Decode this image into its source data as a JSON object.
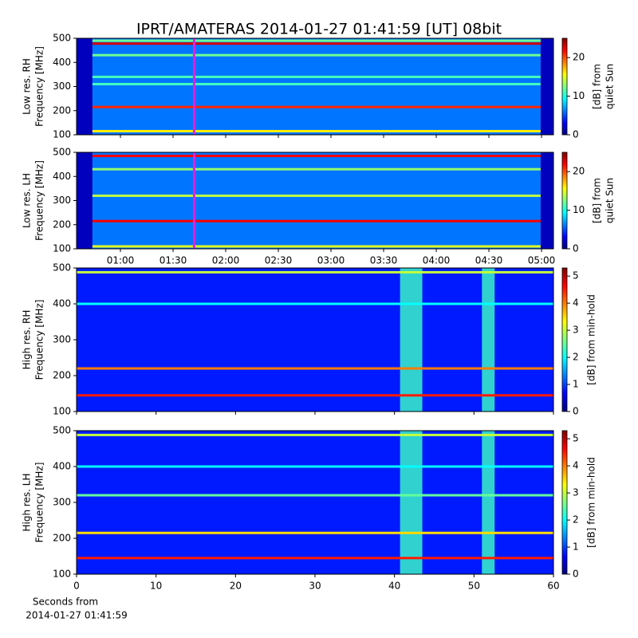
{
  "figure": {
    "title": "IPRT/AMATERAS 2014-01-27 01:41:59 [UT]   08bit",
    "xlabel": [
      "Seconds from",
      "2014-01-27 01:41:59"
    ]
  },
  "chart_data": [
    {
      "type": "heatmap",
      "ylabel": [
        "Low res. RH",
        "Frequency [MHz]"
      ],
      "ylim": [
        100,
        500
      ],
      "yticks": [
        100,
        200,
        300,
        400,
        500
      ],
      "xlim": [
        35,
        306.8
      ],
      "xticks": [
        {
          "value": 60,
          "label": "01:00"
        },
        {
          "value": 90,
          "label": "01:30"
        },
        {
          "value": 120,
          "label": "02:00"
        },
        {
          "value": 150,
          "label": "02:30"
        },
        {
          "value": 180,
          "label": "03:00"
        },
        {
          "value": 210,
          "label": "03:30"
        },
        {
          "value": 240,
          "label": "04:00"
        },
        {
          "value": 270,
          "label": "04:30"
        },
        {
          "value": 300,
          "label": "05:00"
        }
      ],
      "show_xticklabels": false,
      "background": 6,
      "cursor": 102,
      "cursor_color": "#e020e0",
      "masked": [
        {
          "x": [
            35,
            44
          ],
          "value": 1.5
        },
        {
          "x": [
            299.5,
            306.8
          ],
          "value": 1.5
        }
      ],
      "bands": [
        {
          "freq": 490,
          "value": 12
        },
        {
          "freq": 478,
          "value": 23
        },
        {
          "freq": 430,
          "value": 12
        },
        {
          "freq": 340,
          "value": 11
        },
        {
          "freq": 310,
          "value": 11
        },
        {
          "freq": 215,
          "value": 21
        },
        {
          "freq": 115,
          "value": 16
        }
      ],
      "bursts": [],
      "colorbar": {
        "label": [
          "[dB] from",
          "quiet Sun"
        ],
        "lim": [
          0,
          25
        ],
        "ticks": [
          0,
          10,
          20
        ]
      }
    },
    {
      "type": "heatmap",
      "ylabel": [
        "Low res. LH",
        "Frequency [MHz]"
      ],
      "ylim": [
        100,
        500
      ],
      "yticks": [
        100,
        200,
        300,
        400,
        500
      ],
      "xlim": [
        35,
        306.8
      ],
      "xticks": [
        {
          "value": 60,
          "label": "01:00"
        },
        {
          "value": 90,
          "label": "01:30"
        },
        {
          "value": 120,
          "label": "02:00"
        },
        {
          "value": 150,
          "label": "02:30"
        },
        {
          "value": 180,
          "label": "03:00"
        },
        {
          "value": 210,
          "label": "03:30"
        },
        {
          "value": 240,
          "label": "04:00"
        },
        {
          "value": 270,
          "label": "04:30"
        },
        {
          "value": 300,
          "label": "05:00"
        }
      ],
      "show_xticklabels": true,
      "background": 6,
      "cursor": 102,
      "cursor_color": "#e020e0",
      "masked": [
        {
          "x": [
            35,
            44
          ],
          "value": 1.5
        },
        {
          "x": [
            299.5,
            306.8
          ],
          "value": 1.5
        }
      ],
      "bands": [
        {
          "freq": 485,
          "value": 22
        },
        {
          "freq": 430,
          "value": 13
        },
        {
          "freq": 320,
          "value": 14
        },
        {
          "freq": 215,
          "value": 22
        },
        {
          "freq": 110,
          "value": 15
        }
      ],
      "bursts": [],
      "colorbar": {
        "label": [
          "[dB] from",
          "quiet Sun"
        ],
        "lim": [
          0,
          25
        ],
        "ticks": [
          0,
          10,
          20
        ]
      }
    },
    {
      "type": "heatmap",
      "ylabel": [
        "High res. RH",
        "Frequency [MHz]"
      ],
      "ylim": [
        100,
        500
      ],
      "yticks": [
        100,
        200,
        300,
        400,
        500
      ],
      "xlim": [
        0,
        60
      ],
      "xticks": [
        0,
        10,
        20,
        30,
        40,
        50,
        60
      ],
      "show_xticklabels": false,
      "background": 0.8,
      "masked": [],
      "bands": [
        {
          "freq": 488,
          "value": 3
        },
        {
          "freq": 400,
          "value": 2
        },
        {
          "freq": 220,
          "value": 4
        },
        {
          "freq": 145,
          "value": 4.5
        }
      ],
      "bursts": [
        {
          "x": [
            40.7,
            43.5
          ],
          "value": 2.3
        },
        {
          "x": [
            51,
            52.6
          ],
          "value": 2.3
        }
      ],
      "colorbar": {
        "label": [
          "[dB] from min-hold"
        ],
        "lim": [
          0,
          5.3
        ],
        "ticks": [
          0,
          1,
          2,
          3,
          4,
          5
        ]
      }
    },
    {
      "type": "heatmap",
      "ylabel": [
        "High res. LH",
        "Frequency [MHz]"
      ],
      "ylim": [
        100,
        500
      ],
      "yticks": [
        100,
        200,
        300,
        400,
        500
      ],
      "xlim": [
        0,
        60
      ],
      "xticks": [
        0,
        10,
        20,
        30,
        40,
        50,
        60
      ],
      "show_xticklabels": true,
      "background": 0.8,
      "masked": [],
      "bands": [
        {
          "freq": 488,
          "value": 3
        },
        {
          "freq": 400,
          "value": 2
        },
        {
          "freq": 320,
          "value": 2.5
        },
        {
          "freq": 215,
          "value": 3.5
        },
        {
          "freq": 145,
          "value": 4.5
        }
      ],
      "bursts": [
        {
          "x": [
            40.7,
            43.5
          ],
          "value": 2.3
        },
        {
          "x": [
            51,
            52.6
          ],
          "value": 2.3
        }
      ],
      "colorbar": {
        "label": [
          "[dB] from min-hold"
        ],
        "lim": [
          0,
          5.3
        ],
        "ticks": [
          0,
          1,
          2,
          3,
          4,
          5
        ]
      }
    }
  ]
}
